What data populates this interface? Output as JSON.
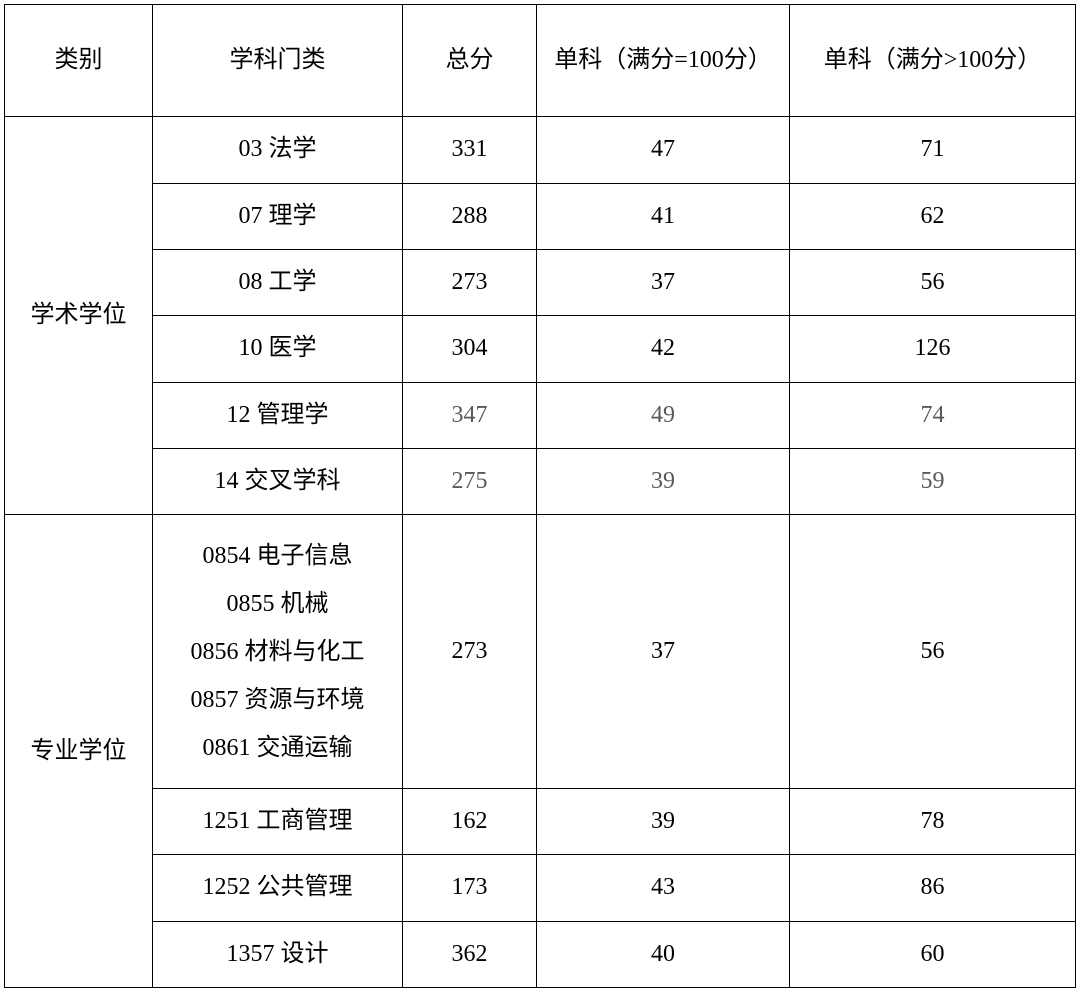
{
  "table": {
    "type": "table",
    "columns": {
      "category": "类别",
      "subject": "学科门类",
      "total": "总分",
      "sub100": "单科（满分=100分）",
      "subgt100": "单科（满分>100分）"
    },
    "colors": {
      "border": "#000000",
      "background": "#ffffff",
      "text_primary": "#000000",
      "text_grey": "#595959"
    },
    "font_size": 24,
    "groups": [
      {
        "category": "学术学位",
        "rowspan": 6,
        "rows": [
          {
            "subject": "03 法学",
            "total": "331",
            "sub100": "47",
            "subgt100": "71",
            "grey": false
          },
          {
            "subject": "07 理学",
            "total": "288",
            "sub100": "41",
            "subgt100": "62",
            "grey": false
          },
          {
            "subject": "08 工学",
            "total": "273",
            "sub100": "37",
            "subgt100": "56",
            "grey": false
          },
          {
            "subject": "10 医学",
            "total": "304",
            "sub100": "42",
            "subgt100": "126",
            "grey": false
          },
          {
            "subject": "12 管理学",
            "total": "347",
            "sub100": "49",
            "subgt100": "74",
            "grey": true
          },
          {
            "subject": "14 交叉学科",
            "total": "275",
            "sub100": "39",
            "subgt100": "59",
            "grey": true
          }
        ]
      },
      {
        "category": "专业学位",
        "rowspan": 4,
        "rows": [
          {
            "subject_lines": [
              "0854 电子信息",
              "0855 机械",
              "0856 材料与化工",
              "0857 资源与环境",
              "0861 交通运输"
            ],
            "total": "273",
            "sub100": "37",
            "subgt100": "56",
            "grey": false,
            "multiline": true
          },
          {
            "subject": "1251 工商管理",
            "total": "162",
            "sub100": "39",
            "subgt100": "78",
            "grey": false
          },
          {
            "subject": "1252 公共管理",
            "total": "173",
            "sub100": "43",
            "subgt100": "86",
            "grey": false
          },
          {
            "subject": "1357 设计",
            "total": "362",
            "sub100": "40",
            "subgt100": "60",
            "grey": false
          }
        ]
      }
    ]
  }
}
